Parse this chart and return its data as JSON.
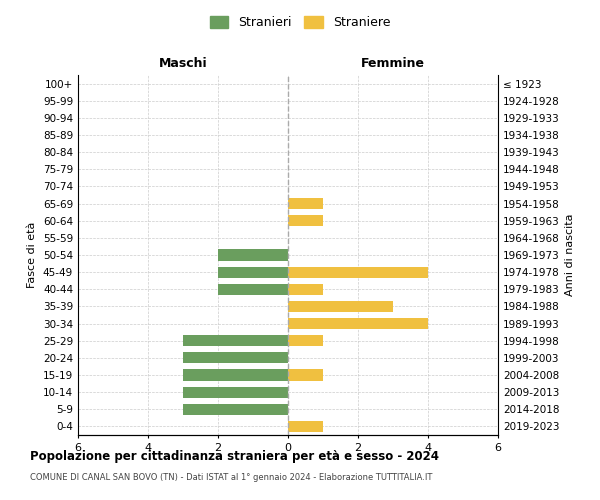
{
  "age_groups": [
    "100+",
    "95-99",
    "90-94",
    "85-89",
    "80-84",
    "75-79",
    "70-74",
    "65-69",
    "60-64",
    "55-59",
    "50-54",
    "45-49",
    "40-44",
    "35-39",
    "30-34",
    "25-29",
    "20-24",
    "15-19",
    "10-14",
    "5-9",
    "0-4"
  ],
  "birth_years": [
    "≤ 1923",
    "1924-1928",
    "1929-1933",
    "1934-1938",
    "1939-1943",
    "1944-1948",
    "1949-1953",
    "1954-1958",
    "1959-1963",
    "1964-1968",
    "1969-1973",
    "1974-1978",
    "1979-1983",
    "1984-1988",
    "1989-1993",
    "1994-1998",
    "1999-2003",
    "2004-2008",
    "2009-2013",
    "2014-2018",
    "2019-2023"
  ],
  "maschi": [
    0,
    0,
    0,
    0,
    0,
    0,
    0,
    0,
    0,
    0,
    2,
    2,
    2,
    0,
    0,
    3,
    3,
    3,
    3,
    3,
    0
  ],
  "femmine": [
    0,
    0,
    0,
    0,
    0,
    0,
    0,
    1,
    1,
    0,
    0,
    4,
    1,
    3,
    4,
    1,
    0,
    1,
    0,
    0,
    1
  ],
  "color_maschi": "#6a9e5e",
  "color_femmine": "#f0c040",
  "title": "Popolazione per cittadinanza straniera per età e sesso - 2024",
  "subtitle": "COMUNE DI CANAL SAN BOVO (TN) - Dati ISTAT al 1° gennaio 2024 - Elaborazione TUTTITALIA.IT",
  "xlabel_left": "Maschi",
  "xlabel_right": "Femmine",
  "ylabel_left": "Fasce di età",
  "ylabel_right": "Anni di nascita",
  "legend_maschi": "Stranieri",
  "legend_femmine": "Straniere",
  "xlim": 6,
  "background_color": "#ffffff",
  "grid_color": "#cccccc"
}
